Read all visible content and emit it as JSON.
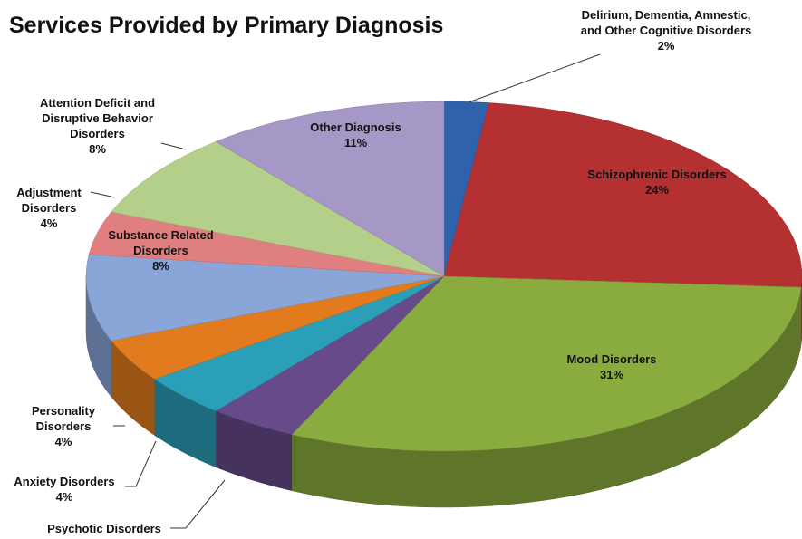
{
  "chart_data": {
    "type": "pie",
    "title": "Services Provided by Primary Diagnosis",
    "categories": [
      "Delirium, Dementia, Amnestic, and Other Cognitive Disorders",
      "Schizophrenic Disorders",
      "Mood Disorders",
      "Psychotic Disorders",
      "Anxiety Disorders",
      "Personality Disorders",
      "Substance Related Disorders",
      "Adjustment Disorders",
      "Attention Deficit and Disruptive Behavior Disorders",
      "Other Diagnosis"
    ],
    "values": [
      2,
      24,
      31,
      4,
      4,
      4,
      8,
      4,
      8,
      11
    ],
    "value_labels": [
      "2%",
      "24%",
      "31%",
      null,
      "4%",
      "4%",
      "8%",
      "4%",
      "8%",
      "11%"
    ],
    "colors": [
      "#2e62ad",
      "#b53131",
      "#8aac3e",
      "#674a8a",
      "#2b9fb8",
      "#e27b1e",
      "#8aa6d9",
      "#e07f7f",
      "#b4cf8a",
      "#a597c6"
    ]
  }
}
